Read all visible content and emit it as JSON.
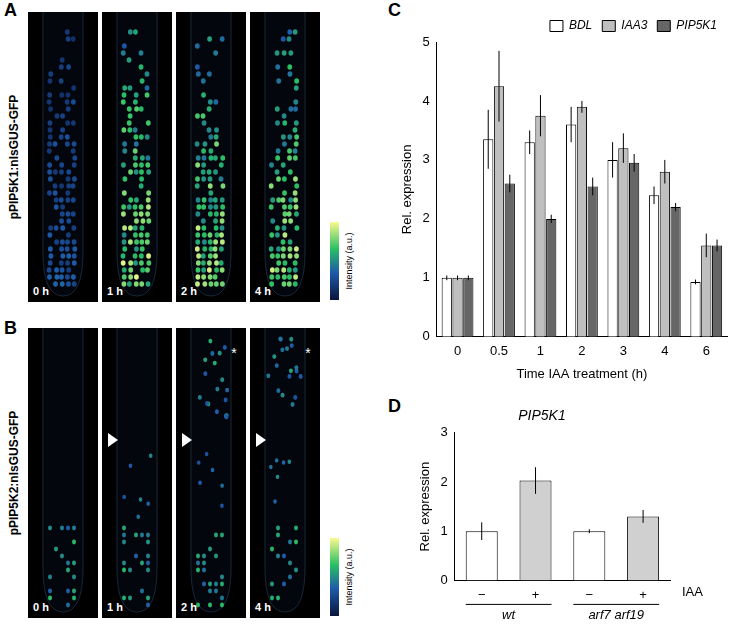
{
  "panel_labels": [
    "A",
    "B",
    "C",
    "D"
  ],
  "image_panels": [
    {
      "label": "pPIP5K1:nlsGUS-GFP",
      "colorbar_label": "Intensity (a.u.)",
      "frames": [
        {
          "label": "0 h"
        },
        {
          "label": "1 h"
        },
        {
          "label": "2 h"
        },
        {
          "label": "4 h"
        }
      ]
    },
    {
      "label": "pPIP5K2:nlsGUS-GFP",
      "colorbar_label": "Intensity (a.u.)",
      "frames": [
        {
          "label": "0 h"
        },
        {
          "label": "1 h",
          "arrowhead": true
        },
        {
          "label": "2 h",
          "arrowhead": true,
          "annotation": "*"
        },
        {
          "label": "4 h",
          "arrowhead": true,
          "annotation": "*"
        }
      ]
    }
  ],
  "chart_data": [
    {
      "type": "bar",
      "categories": [
        "0",
        "0.5",
        "1",
        "2",
        "3",
        "4",
        "6"
      ],
      "xlabel": "Time IAA treatment (h)",
      "ylabel": "Rel. expression",
      "ylim": [
        0,
        5
      ],
      "yticks": [
        0,
        1,
        2,
        3,
        4,
        5
      ],
      "grid": false,
      "legend": "top-right",
      "series": [
        {
          "name": "BDL",
          "color": "#ffffff",
          "values": [
            1,
            3.35,
            3.3,
            3.6,
            3.0,
            2.4,
            0.93
          ],
          "errors": [
            0.04,
            0.5,
            0.2,
            0.3,
            0.3,
            0.15,
            0.04
          ]
        },
        {
          "name": "IAA3",
          "color": "#bfbfbf",
          "values": [
            1,
            4.25,
            3.75,
            3.9,
            3.2,
            2.8,
            1.55
          ],
          "errors": [
            0.04,
            0.6,
            0.35,
            0.1,
            0.25,
            0.2,
            0.2
          ]
        },
        {
          "name": "PIP5K1",
          "color": "#666666",
          "values": [
            1,
            2.6,
            2.0,
            2.55,
            2.95,
            2.2,
            1.55
          ],
          "errors": [
            0.04,
            0.15,
            0.07,
            0.15,
            0.15,
            0.07,
            0.1
          ]
        }
      ]
    },
    {
      "type": "bar",
      "title": "PIP5K1",
      "categories": [
        "−",
        "+",
        "−",
        "+"
      ],
      "category_groups": [
        "wt",
        "arf7 arf19"
      ],
      "category_row_label": "IAA",
      "ylabel": "Rel. expression",
      "ylim": [
        0,
        3
      ],
      "yticks": [
        0,
        1,
        2,
        3
      ],
      "grid": false,
      "values": [
        1,
        2.03,
        1,
        1.3
      ],
      "errors": [
        0.18,
        0.27,
        0.04,
        0.13
      ],
      "colors": [
        "#ffffff",
        "#d0d0d0",
        "#ffffff",
        "#d0d0d0"
      ]
    }
  ]
}
